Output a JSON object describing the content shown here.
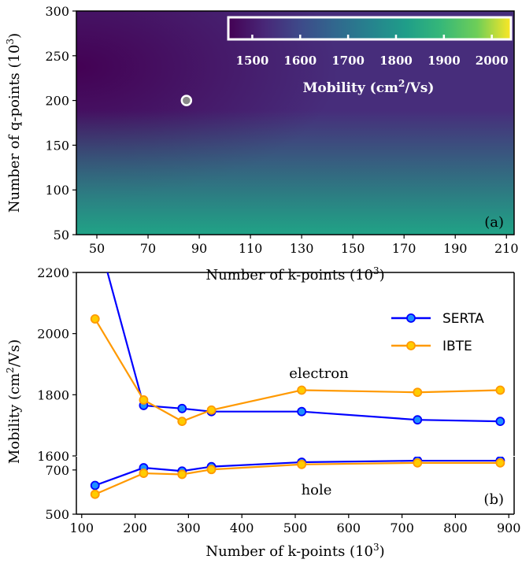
{
  "chart_data": [
    {
      "panel": "(a)",
      "type": "heatmap",
      "xlabel": "Number of k-points (10",
      "xlabel_sup": "3",
      "xlabel_end": ")",
      "ylabel": "Number of q-points (10",
      "ylabel_sup": "3",
      "ylabel_end": ")",
      "xlim": [
        42,
        213
      ],
      "ylim": [
        50,
        300
      ],
      "xticks": [
        50,
        70,
        90,
        110,
        130,
        150,
        170,
        190,
        210
      ],
      "yticks": [
        50,
        100,
        150,
        200,
        250,
        300
      ],
      "colorbar": {
        "label": "Mobility (cm",
        "label_sup": "2",
        "label_end": "/Vs)",
        "range": [
          1450,
          2040
        ],
        "ticks": [
          1500,
          1600,
          1700,
          1800,
          1900,
          2000
        ],
        "colormap": "viridis",
        "placement": "top-right"
      },
      "marker": {
        "x": 85,
        "y": 200
      }
    },
    {
      "panel": "(b)",
      "type": "line",
      "xlabel": "Number of k-points (10",
      "xlabel_sup": "3",
      "xlabel_end": ")",
      "ylabel": "Mobility (cm",
      "ylabel_sup": "2",
      "ylabel_end": "/Vs)",
      "xlim": [
        90,
        910
      ],
      "xticks": [
        100,
        200,
        300,
        400,
        500,
        600,
        700,
        800,
        900
      ],
      "broken_axis": true,
      "upper_ylim": [
        1600,
        2200
      ],
      "upper_yticks": [
        1600,
        1800,
        2000,
        2200
      ],
      "lower_ylim": [
        500,
        760
      ],
      "lower_yticks": [
        500,
        700
      ],
      "legend_placement": "top-right",
      "annotations": {
        "electron": "electron",
        "hole": "hole"
      },
      "series": [
        {
          "name": "SERTA",
          "color": "#0000ff",
          "marker_color": "#1e90ff",
          "group": "electron",
          "x": [
            125,
            216,
            288,
            343,
            512,
            729,
            884
          ],
          "y": [
            2350,
            1765,
            1755,
            1745,
            1745,
            1718,
            1713
          ]
        },
        {
          "name": "IBTE",
          "color": "#ff9900",
          "marker_color": "#ffcc00",
          "group": "electron",
          "x": [
            125,
            216,
            288,
            343,
            512,
            729,
            884
          ],
          "y": [
            2048,
            1783,
            1713,
            1750,
            1815,
            1808,
            1815
          ]
        },
        {
          "name": "SERTA",
          "color": "#0000ff",
          "marker_color": "#1e90ff",
          "group": "hole",
          "x": [
            125,
            216,
            288,
            343,
            512,
            729,
            884
          ],
          "y": [
            630,
            710,
            695,
            715,
            735,
            742,
            742
          ]
        },
        {
          "name": "IBTE",
          "color": "#ff9900",
          "marker_color": "#ffcc00",
          "group": "hole",
          "x": [
            125,
            216,
            288,
            343,
            512,
            729,
            884
          ],
          "y": [
            590,
            685,
            680,
            702,
            725,
            732,
            732
          ]
        }
      ]
    }
  ]
}
